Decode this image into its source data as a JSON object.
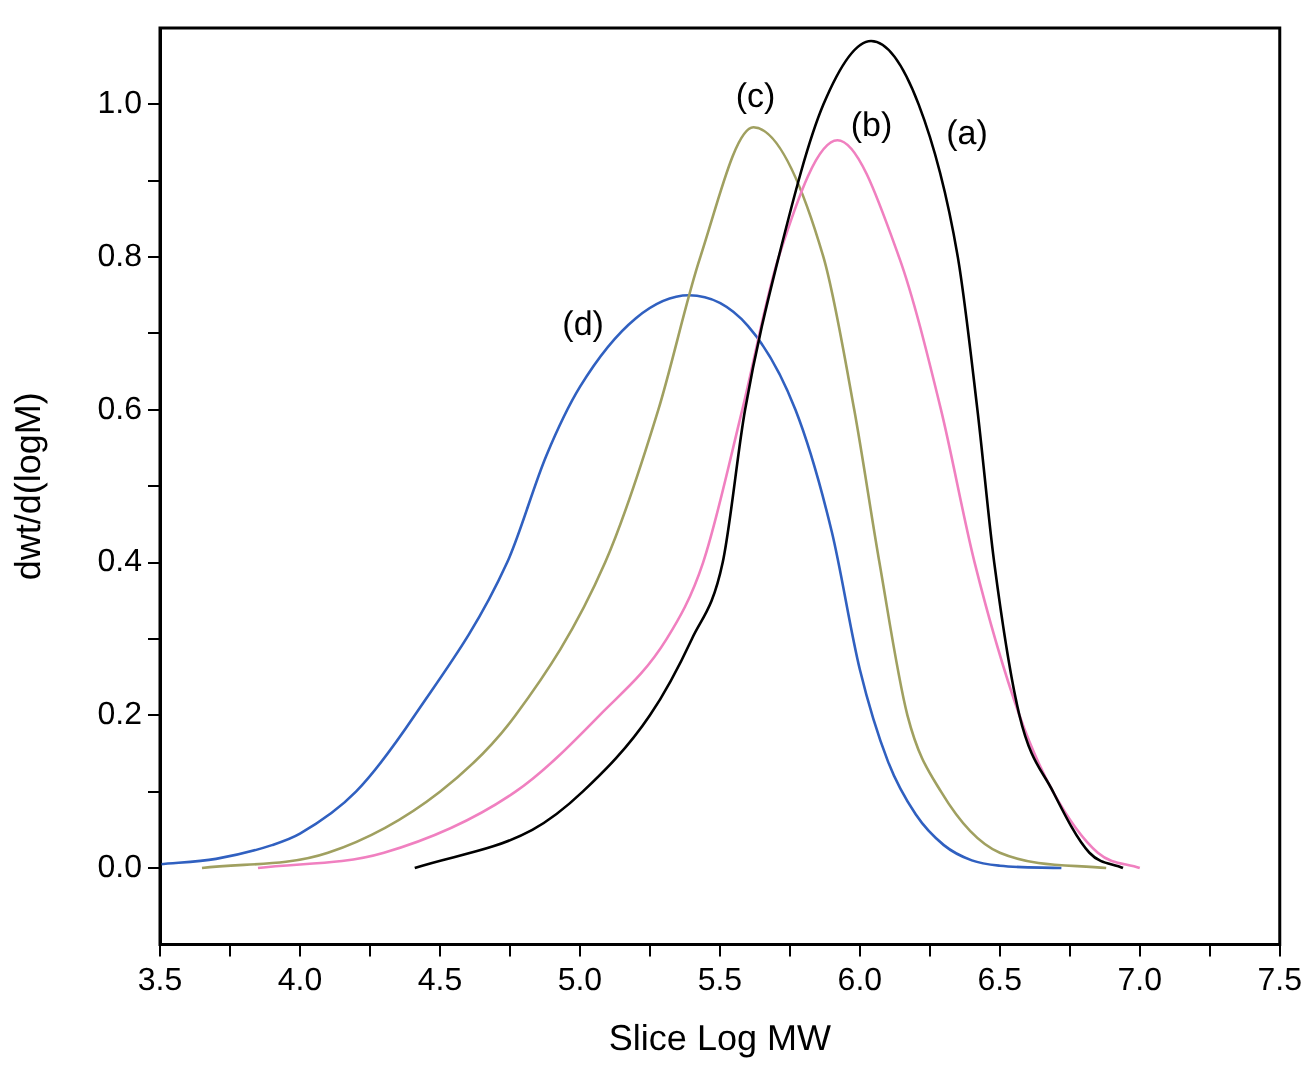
{
  "chart_data": {
    "type": "line",
    "xlabel": "Slice Log MW",
    "ylabel": "dwt/d(logM)",
    "xlim": [
      3.5,
      7.5
    ],
    "ylim": [
      -0.1,
      1.1
    ],
    "xticks": [
      3.5,
      {
        "value": 3.75,
        "label": null
      },
      "4.0",
      {
        "value": 4.25,
        "label": null
      },
      4.5,
      {
        "value": 4.75,
        "label": null
      },
      "5.0",
      {
        "value": 5.25,
        "label": null
      },
      5.5,
      {
        "value": 5.75,
        "label": null
      },
      "6.0",
      {
        "value": 6.25,
        "label": null
      },
      6.5,
      {
        "value": 6.75,
        "label": null
      },
      "7.0",
      {
        "value": 7.25,
        "label": null
      },
      7.5
    ],
    "yticks": [
      {
        "value": 0,
        "label": "0.0"
      },
      {
        "value": 0.1,
        "label": null
      },
      0.2,
      {
        "value": 0.3,
        "label": null
      },
      0.4,
      {
        "value": 0.5,
        "label": null
      },
      0.6,
      {
        "value": 0.7,
        "label": null
      },
      0.8,
      {
        "value": 0.9,
        "label": null
      },
      {
        "value": 1,
        "label": "1.0"
      }
    ],
    "grid": false,
    "legend": false,
    "marker": "none",
    "line_style": "solid",
    "series": [
      {
        "name": "(a)",
        "color": "#000000",
        "x": [
          4.41,
          4.83,
          5.01,
          5.25,
          5.4,
          5.51,
          5.59,
          5.71,
          5.87,
          6.04,
          6.21,
          6.35,
          6.42,
          6.48,
          6.57,
          6.69,
          6.82,
          6.94
        ],
        "values": [
          0,
          0.05,
          0.1,
          0.2,
          0.3,
          0.4,
          0.6,
          0.8,
          1.0,
          1.083,
          1.0,
          0.8,
          0.6,
          0.4,
          0.2,
          0.1,
          0.02,
          0
        ]
      },
      {
        "name": "(b)",
        "color": "#f080c0",
        "x": [
          3.85,
          4.3,
          4.77,
          5.07,
          5.31,
          5.44,
          5.58,
          5.71,
          5.92,
          6.14,
          6.29,
          6.41,
          6.57,
          6.69,
          6.85,
          7.0
        ],
        "values": [
          0,
          0.02,
          0.1,
          0.2,
          0.3,
          0.4,
          0.6,
          0.8,
          0.953,
          0.8,
          0.6,
          0.4,
          0.2,
          0.1,
          0.02,
          0
        ]
      },
      {
        "name": "(c)",
        "color": "#a0a060",
        "x": [
          3.65,
          4.1,
          4.5,
          4.77,
          5.09,
          5.28,
          5.43,
          5.62,
          5.87,
          5.98,
          6.07,
          6.17,
          6.29,
          6.5,
          6.88
        ],
        "values": [
          0,
          0.02,
          0.1,
          0.2,
          0.4,
          0.6,
          0.8,
          0.97,
          0.8,
          0.6,
          0.4,
          0.2,
          0.1,
          0.02,
          0
        ]
      },
      {
        "name": "(d)",
        "color": "#3060c0",
        "x": [
          3.5,
          3.7,
          3.9,
          4.0,
          4.2,
          4.41,
          4.74,
          4.88,
          5.0,
          5.2,
          5.39,
          5.6,
          5.77,
          5.9,
          6.0,
          6.1,
          6.2,
          6.3,
          6.4,
          6.5,
          6.72
        ],
        "values": [
          0.005,
          0.012,
          0.03,
          0.045,
          0.1,
          0.2,
          0.4,
          0.54,
          0.63,
          0.72,
          0.75,
          0.71,
          0.6,
          0.44,
          0.26,
          0.14,
          0.07,
          0.03,
          0.01,
          0.003,
          0
        ]
      }
    ]
  }
}
